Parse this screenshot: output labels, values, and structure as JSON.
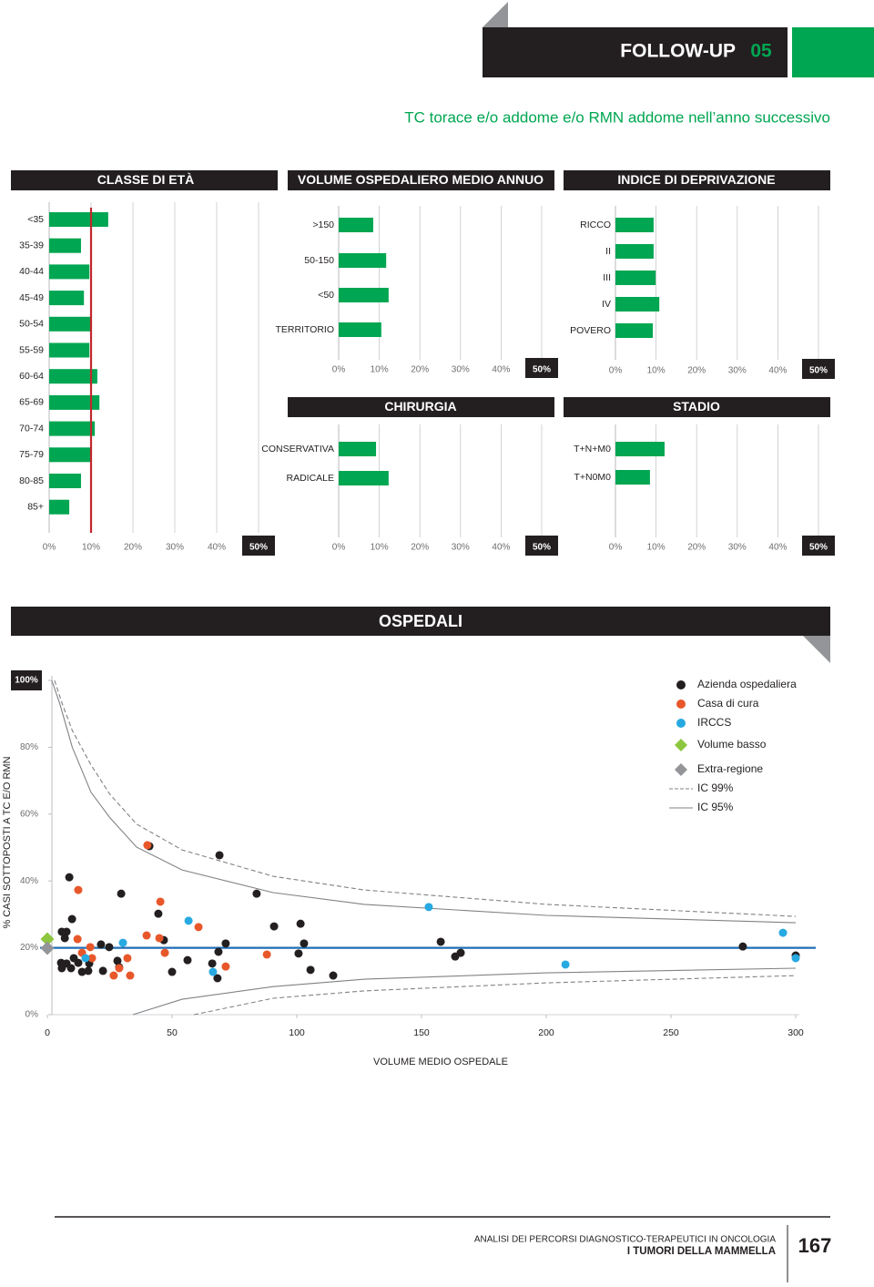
{
  "header": {
    "section": "FOLLOW-UP",
    "number": "05"
  },
  "subtitle": "TC torace e/o addome e/o RMN addome nell’anno successivo",
  "chart_data": [
    {
      "type": "bar",
      "orientation": "horizontal",
      "title": "CLASSE DI ETÀ",
      "color": "#00a651",
      "categories": [
        "<35",
        "35-39",
        "40-44",
        "45-49",
        "50-54",
        "55-59",
        "60-64",
        "65-69",
        "70-74",
        "75-79",
        "80-85",
        "85+"
      ],
      "values": [
        14.1,
        7.6,
        9.6,
        8.3,
        10,
        9.6,
        11.5,
        12,
        10.9,
        10,
        7.6,
        4.8
      ],
      "xlim": [
        0,
        50
      ],
      "xticks": [
        {
          "value": 0,
          "label": "0%"
        },
        {
          "value": 10,
          "label": "10%"
        },
        {
          "value": 20,
          "label": "20%"
        },
        {
          "value": 30,
          "label": "30%"
        },
        {
          "value": 40,
          "label": "40%"
        },
        {
          "value": 50,
          "label": "50%"
        }
      ],
      "grid": true,
      "reference_line": 10,
      "reference_color": "#c1272d"
    },
    {
      "type": "bar",
      "orientation": "horizontal",
      "title": "VOLUME OSPEDALIERO MEDIO ANNUO",
      "color": "#00a651",
      "categories": [
        ">150",
        "50-150",
        "<50",
        "TERRITORIO"
      ],
      "values": [
        8.5,
        11.7,
        12.3,
        10.5
      ],
      "xlim": [
        0,
        50
      ],
      "xticks": [
        {
          "value": 0,
          "label": "0%"
        },
        {
          "value": 10,
          "label": "10%"
        },
        {
          "value": 20,
          "label": "20%"
        },
        {
          "value": 30,
          "label": "30%"
        },
        {
          "value": 40,
          "label": "40%"
        },
        {
          "value": 50,
          "label": "50%"
        }
      ],
      "grid": true
    },
    {
      "type": "bar",
      "orientation": "horizontal",
      "title": "INDICE DI DEPRIVAZIONE",
      "color": "#00a651",
      "categories": [
        "RICCO",
        "II",
        "III",
        "IV",
        "POVERO"
      ],
      "values": [
        9.4,
        9.4,
        9.9,
        10.8,
        9.2
      ],
      "xlim": [
        0,
        50
      ],
      "xticks": [
        {
          "value": 0,
          "label": "0%"
        },
        {
          "value": 10,
          "label": "10%"
        },
        {
          "value": 20,
          "label": "20%"
        },
        {
          "value": 30,
          "label": "30%"
        },
        {
          "value": 40,
          "label": "40%"
        },
        {
          "value": 50,
          "label": "50%"
        }
      ],
      "grid": true
    },
    {
      "type": "bar",
      "orientation": "horizontal",
      "title": "CHIRURGIA",
      "color": "#00a651",
      "categories": [
        "CONSERVATIVA",
        "RADICALE"
      ],
      "values": [
        9.2,
        12.3
      ],
      "xlim": [
        0,
        50
      ],
      "xticks": [
        {
          "value": 0,
          "label": "0%"
        },
        {
          "value": 10,
          "label": "10%"
        },
        {
          "value": 20,
          "label": "20%"
        },
        {
          "value": 30,
          "label": "30%"
        },
        {
          "value": 40,
          "label": "40%"
        },
        {
          "value": 50,
          "label": "50%"
        }
      ],
      "grid": true
    },
    {
      "type": "bar",
      "orientation": "horizontal",
      "title": "STADIO",
      "color": "#00a651",
      "categories": [
        "T+N+M0",
        "T+N0M0"
      ],
      "values": [
        12.1,
        8.5
      ],
      "xlim": [
        0,
        50
      ],
      "xticks": [
        {
          "value": 0,
          "label": "0%"
        },
        {
          "value": 10,
          "label": "10%"
        },
        {
          "value": 20,
          "label": "20%"
        },
        {
          "value": 30,
          "label": "30%"
        },
        {
          "value": 40,
          "label": "40%"
        },
        {
          "value": 50,
          "label": "50%"
        }
      ],
      "grid": true
    },
    {
      "type": "scatter",
      "title": "OSPEDALI",
      "xlabel": "VOLUME MEDIO OSPEDALE",
      "ylabel": "% CASI SOTTOPOSTI A TC E/O RMN",
      "xlim": [
        0,
        300
      ],
      "ylim": [
        0,
        100
      ],
      "xticks": [
        0,
        50,
        100,
        150,
        200,
        250,
        300
      ],
      "yticks": [
        {
          "value": 0,
          "label": "0%"
        },
        {
          "value": 20,
          "label": "20%"
        },
        {
          "value": 40,
          "label": "40%"
        },
        {
          "value": 60,
          "label": "60%"
        },
        {
          "value": 80,
          "label": "80%"
        },
        {
          "value": 100,
          "label": "100%"
        }
      ],
      "reference_line": 20,
      "reference_color": "#1f6fb5",
      "series": [
        {
          "name": "Azienda ospedaliera",
          "color": "#231f20",
          "marker": "circle",
          "x": [
            8.8,
            40.9,
            69,
            29.6,
            83.9,
            44.5,
            9.9,
            90.9,
            101.5,
            5.8,
            7.7,
            7,
            46.7,
            21.5,
            71.5,
            102.9,
            157.7,
            24.8,
            68.6,
            100.7,
            165.7,
            163.5,
            278.8,
            300,
            10.6,
            5.5,
            7.7,
            12.4,
            16.8,
            28.1,
            56.2,
            66.1,
            5.8,
            9.5,
            13.9,
            16.4,
            22.3,
            28.8,
            50,
            105.5,
            114.6,
            68.2
          ],
          "values": [
            41.1,
            50.4,
            47.7,
            36.2,
            36.2,
            30.2,
            28.6,
            26.4,
            27.2,
            24.8,
            24.8,
            22.9,
            22.3,
            21,
            21.3,
            21.3,
            21.8,
            20.2,
            18.8,
            18.3,
            18.5,
            17.4,
            20.4,
            17.7,
            16.9,
            15.5,
            15.3,
            15.5,
            15.3,
            16.1,
            16.3,
            15.3,
            13.9,
            13.9,
            12.8,
            13.1,
            13.1,
            14.2,
            12.8,
            13.4,
            11.7,
            10.9
          ]
        },
        {
          "name": "Casa di cura",
          "color": "#e8572a",
          "marker": "circle",
          "x": [
            40.1,
            12.4,
            45.3,
            60.6,
            12.1,
            39.8,
            44.9,
            17.2,
            13.9,
            47.1,
            88,
            17.9,
            32.1,
            71.5,
            28.8,
            26.6,
            33.2
          ],
          "values": [
            50.7,
            37.3,
            33.8,
            26.2,
            22.6,
            23.7,
            22.9,
            20.2,
            18.5,
            18.5,
            18,
            16.9,
            16.9,
            14.4,
            13.9,
            11.7,
            11.7
          ]
        },
        {
          "name": "IRCCS",
          "color": "#27a9e1",
          "marker": "circle",
          "x": [
            152.9,
            56.6,
            30.3,
            15.3,
            66.4,
            207.7,
            294.9,
            300
          ],
          "values": [
            32.2,
            28.1,
            21.5,
            16.9,
            12.8,
            15,
            24.5,
            16.9
          ]
        },
        {
          "name": "Volume basso",
          "color": "#8dc63f",
          "marker": "diamond",
          "x": [
            0
          ],
          "values": [
            22.6
          ]
        },
        {
          "name": "Extra-regione",
          "color": "#939598",
          "marker": "diamond",
          "x": [
            0
          ],
          "values": [
            19.9
          ]
        }
      ],
      "bands": [
        {
          "name": "IC 99%",
          "color": "#808285",
          "dashed": true,
          "upper": {
            "x": [
              2.9,
              6,
              10,
              17.5,
              25,
              35.8,
              54,
              90.5,
              127,
              200,
              300
            ],
            "values": [
              100,
              93,
              85,
              74.7,
              66,
              57,
              49.3,
              41.4,
              37.3,
              33,
              29.4
            ]
          },
          "lower": {
            "x": [
              58.8,
              90.5,
              127,
              200,
              300
            ],
            "values": [
              0,
              4.9,
              7.1,
              9.5,
              11.7
            ]
          }
        },
        {
          "name": "IC 95%",
          "color": "#808285",
          "dashed": false,
          "upper": {
            "x": [
              1.8,
              5,
              10,
              17.5,
              25,
              35.8,
              54,
              90.5,
              127,
              200,
              300
            ],
            "values": [
              100,
              93,
              80,
              66.5,
              59,
              50.1,
              43.3,
              36.5,
              33,
              29.7,
              27.5
            ]
          },
          "lower": {
            "x": [
              34.3,
              54,
              90.5,
              127,
              200,
              300
            ],
            "values": [
              0,
              4.6,
              8.4,
              10.6,
              12.5,
              13.9
            ]
          }
        }
      ]
    }
  ],
  "footer": {
    "series_title": "ANALISI DEI PERCORSI DIAGNOSTICO-TERAPEUTICI IN ONCOLOGIA",
    "book_title": "I TUMORI DELLA MAMMELLA",
    "page": "167"
  }
}
